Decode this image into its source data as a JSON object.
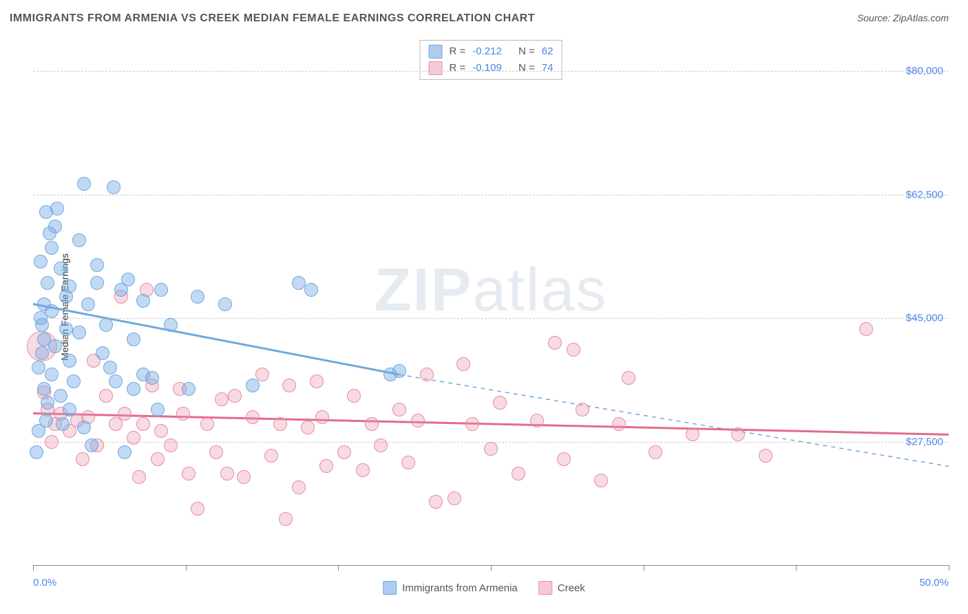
{
  "title": "IMMIGRANTS FROM ARMENIA VS CREEK MEDIAN FEMALE EARNINGS CORRELATION CHART",
  "source_label": "Source: ZipAtlas.com",
  "ylabel": "Median Female Earnings",
  "watermark": {
    "part1": "ZIP",
    "part2": "atlas"
  },
  "chart": {
    "type": "scatter",
    "xlim": [
      0,
      50
    ],
    "ylim": [
      10000,
      85000
    ],
    "xtick_positions": [
      0,
      8.33,
      16.67,
      25,
      33.33,
      41.67,
      50
    ],
    "xtick_labels_shown": {
      "0": "0.0%",
      "50": "50.0%"
    },
    "ytick_positions": [
      27500,
      45000,
      62500,
      80000
    ],
    "ytick_labels": [
      "$27,500",
      "$45,000",
      "$62,500",
      "$80,000"
    ],
    "grid_color": "#cccccc",
    "axis_color": "#888888",
    "background_color": "#ffffff",
    "title_fontsize": 16,
    "label_fontsize": 14,
    "tick_label_color": "#4a86e8"
  },
  "series": [
    {
      "name": "Immigrants from Armenia",
      "legend_label": "Immigrants from Armenia",
      "color": "#6fa8dc",
      "fill": "rgba(120,170,230,0.45)",
      "correlation_R": "-0.212",
      "N": "62",
      "trend": {
        "solid": {
          "x1": 0,
          "y1": 47000,
          "x2": 20,
          "y2": 37000
        },
        "dashed": {
          "x1": 20,
          "y1": 37000,
          "x2": 50,
          "y2": 24000
        },
        "line_width": 3,
        "dash_pattern": "6 6"
      },
      "marker_radius": 10,
      "points": [
        {
          "x": 0.5,
          "y": 44000
        },
        {
          "x": 0.6,
          "y": 47000
        },
        {
          "x": 0.8,
          "y": 50000
        },
        {
          "x": 0.6,
          "y": 42000
        },
        {
          "x": 1.0,
          "y": 55000
        },
        {
          "x": 1.2,
          "y": 58000
        },
        {
          "x": 0.7,
          "y": 60000
        },
        {
          "x": 2.8,
          "y": 64000
        },
        {
          "x": 4.4,
          "y": 63500
        },
        {
          "x": 1.5,
          "y": 52000
        },
        {
          "x": 1.8,
          "y": 48000
        },
        {
          "x": 2.0,
          "y": 49500
        },
        {
          "x": 1.0,
          "y": 46000
        },
        {
          "x": 0.4,
          "y": 45000
        },
        {
          "x": 0.5,
          "y": 40000
        },
        {
          "x": 0.3,
          "y": 38000
        },
        {
          "x": 1.2,
          "y": 41000
        },
        {
          "x": 2.5,
          "y": 43000
        },
        {
          "x": 3.0,
          "y": 47000
        },
        {
          "x": 3.5,
          "y": 50000
        },
        {
          "x": 4.8,
          "y": 49000
        },
        {
          "x": 5.2,
          "y": 50500
        },
        {
          "x": 5.5,
          "y": 35000
        },
        {
          "x": 6.5,
          "y": 36500
        },
        {
          "x": 4.0,
          "y": 44000
        },
        {
          "x": 4.5,
          "y": 36000
        },
        {
          "x": 2.2,
          "y": 36000
        },
        {
          "x": 2.0,
          "y": 32000
        },
        {
          "x": 0.8,
          "y": 33000
        },
        {
          "x": 1.6,
          "y": 30000
        },
        {
          "x": 0.3,
          "y": 29000
        },
        {
          "x": 0.2,
          "y": 26000
        },
        {
          "x": 1.0,
          "y": 37000
        },
        {
          "x": 3.8,
          "y": 40000
        },
        {
          "x": 6.0,
          "y": 47500
        },
        {
          "x": 7.0,
          "y": 49000
        },
        {
          "x": 9.0,
          "y": 48000
        },
        {
          "x": 10.5,
          "y": 47000
        },
        {
          "x": 14.5,
          "y": 50000
        },
        {
          "x": 15.2,
          "y": 49000
        },
        {
          "x": 12.0,
          "y": 35500
        },
        {
          "x": 6.0,
          "y": 37000
        },
        {
          "x": 4.2,
          "y": 38000
        },
        {
          "x": 7.5,
          "y": 44000
        },
        {
          "x": 8.5,
          "y": 35000
        },
        {
          "x": 19.5,
          "y": 37000
        },
        {
          "x": 20.0,
          "y": 37500
        },
        {
          "x": 5.0,
          "y": 26000
        },
        {
          "x": 3.2,
          "y": 27000
        },
        {
          "x": 2.8,
          "y": 29500
        },
        {
          "x": 1.8,
          "y": 43500
        },
        {
          "x": 2.5,
          "y": 56000
        },
        {
          "x": 0.9,
          "y": 57000
        },
        {
          "x": 0.4,
          "y": 53000
        },
        {
          "x": 1.3,
          "y": 60500
        },
        {
          "x": 3.5,
          "y": 52500
        },
        {
          "x": 0.6,
          "y": 35000
        },
        {
          "x": 2.0,
          "y": 39000
        },
        {
          "x": 5.5,
          "y": 42000
        },
        {
          "x": 6.8,
          "y": 32000
        },
        {
          "x": 1.5,
          "y": 34000
        },
        {
          "x": 0.7,
          "y": 30500
        }
      ]
    },
    {
      "name": "Creek",
      "legend_label": "Creek",
      "color": "#e26b8b",
      "fill": "rgba(235,150,175,0.35)",
      "correlation_R": "-0.109",
      "N": "74",
      "trend": {
        "solid": {
          "x1": 0,
          "y1": 31500,
          "x2": 50,
          "y2": 28500
        },
        "dashed": null,
        "line_width": 3
      },
      "marker_radius": 10,
      "points": [
        {
          "x": 0.5,
          "y": 41000,
          "r": 22
        },
        {
          "x": 0.8,
          "y": 32000
        },
        {
          "x": 1.2,
          "y": 30000
        },
        {
          "x": 1.5,
          "y": 31500
        },
        {
          "x": 2.0,
          "y": 29000
        },
        {
          "x": 2.4,
          "y": 30500
        },
        {
          "x": 3.0,
          "y": 31000
        },
        {
          "x": 3.5,
          "y": 27000
        },
        {
          "x": 4.0,
          "y": 34000
        },
        {
          "x": 4.5,
          "y": 30000
        },
        {
          "x": 5.0,
          "y": 31500
        },
        {
          "x": 5.5,
          "y": 28000
        },
        {
          "x": 6.0,
          "y": 30000
        },
        {
          "x": 6.5,
          "y": 35500
        },
        {
          "x": 7.0,
          "y": 29000
        },
        {
          "x": 6.2,
          "y": 49000
        },
        {
          "x": 7.5,
          "y": 27000
        },
        {
          "x": 8.0,
          "y": 35000
        },
        {
          "x": 8.5,
          "y": 23000
        },
        {
          "x": 9.0,
          "y": 18000
        },
        {
          "x": 9.5,
          "y": 30000
        },
        {
          "x": 10.0,
          "y": 26000
        },
        {
          "x": 10.6,
          "y": 23000
        },
        {
          "x": 11.0,
          "y": 34000
        },
        {
          "x": 11.5,
          "y": 22500
        },
        {
          "x": 12.0,
          "y": 31000
        },
        {
          "x": 12.5,
          "y": 37000
        },
        {
          "x": 13.0,
          "y": 25500
        },
        {
          "x": 13.5,
          "y": 30000
        },
        {
          "x": 14.0,
          "y": 35500
        },
        {
          "x": 14.5,
          "y": 21000
        },
        {
          "x": 15.0,
          "y": 29500
        },
        {
          "x": 15.5,
          "y": 36000
        },
        {
          "x": 16.0,
          "y": 24000
        },
        {
          "x": 13.8,
          "y": 16500
        },
        {
          "x": 17.0,
          "y": 26000
        },
        {
          "x": 17.5,
          "y": 34000
        },
        {
          "x": 18.0,
          "y": 23500
        },
        {
          "x": 18.5,
          "y": 30000
        },
        {
          "x": 19.0,
          "y": 27000
        },
        {
          "x": 20.0,
          "y": 32000
        },
        {
          "x": 20.5,
          "y": 24500
        },
        {
          "x": 21.0,
          "y": 30500
        },
        {
          "x": 22.0,
          "y": 19000
        },
        {
          "x": 23.0,
          "y": 19500
        },
        {
          "x": 23.5,
          "y": 38500
        },
        {
          "x": 24.0,
          "y": 30000
        },
        {
          "x": 25.0,
          "y": 26500
        },
        {
          "x": 25.5,
          "y": 33000
        },
        {
          "x": 26.5,
          "y": 23000
        },
        {
          "x": 27.5,
          "y": 30500
        },
        {
          "x": 28.5,
          "y": 41500
        },
        {
          "x": 29.0,
          "y": 25000
        },
        {
          "x": 29.5,
          "y": 40500
        },
        {
          "x": 30.0,
          "y": 32000
        },
        {
          "x": 31.0,
          "y": 22000
        },
        {
          "x": 32.0,
          "y": 30000
        },
        {
          "x": 32.5,
          "y": 36500
        },
        {
          "x": 34.0,
          "y": 26000
        },
        {
          "x": 36.0,
          "y": 28500
        },
        {
          "x": 38.5,
          "y": 28500
        },
        {
          "x": 40.0,
          "y": 25500
        },
        {
          "x": 45.5,
          "y": 43500
        },
        {
          "x": 4.8,
          "y": 48000
        },
        {
          "x": 3.3,
          "y": 39000
        },
        {
          "x": 2.7,
          "y": 25000
        },
        {
          "x": 1.0,
          "y": 27500
        },
        {
          "x": 0.6,
          "y": 34500
        },
        {
          "x": 6.8,
          "y": 25000
        },
        {
          "x": 8.2,
          "y": 31500
        },
        {
          "x": 10.3,
          "y": 33500
        },
        {
          "x": 15.8,
          "y": 31000
        },
        {
          "x": 5.8,
          "y": 22500
        },
        {
          "x": 21.5,
          "y": 37000
        }
      ]
    }
  ],
  "bottom_legend": [
    {
      "swatch": "blue",
      "label": "Immigrants from Armenia"
    },
    {
      "swatch": "pink",
      "label": "Creek"
    }
  ],
  "top_legend_labels": {
    "R_prefix": "R =",
    "N_prefix": "N ="
  }
}
